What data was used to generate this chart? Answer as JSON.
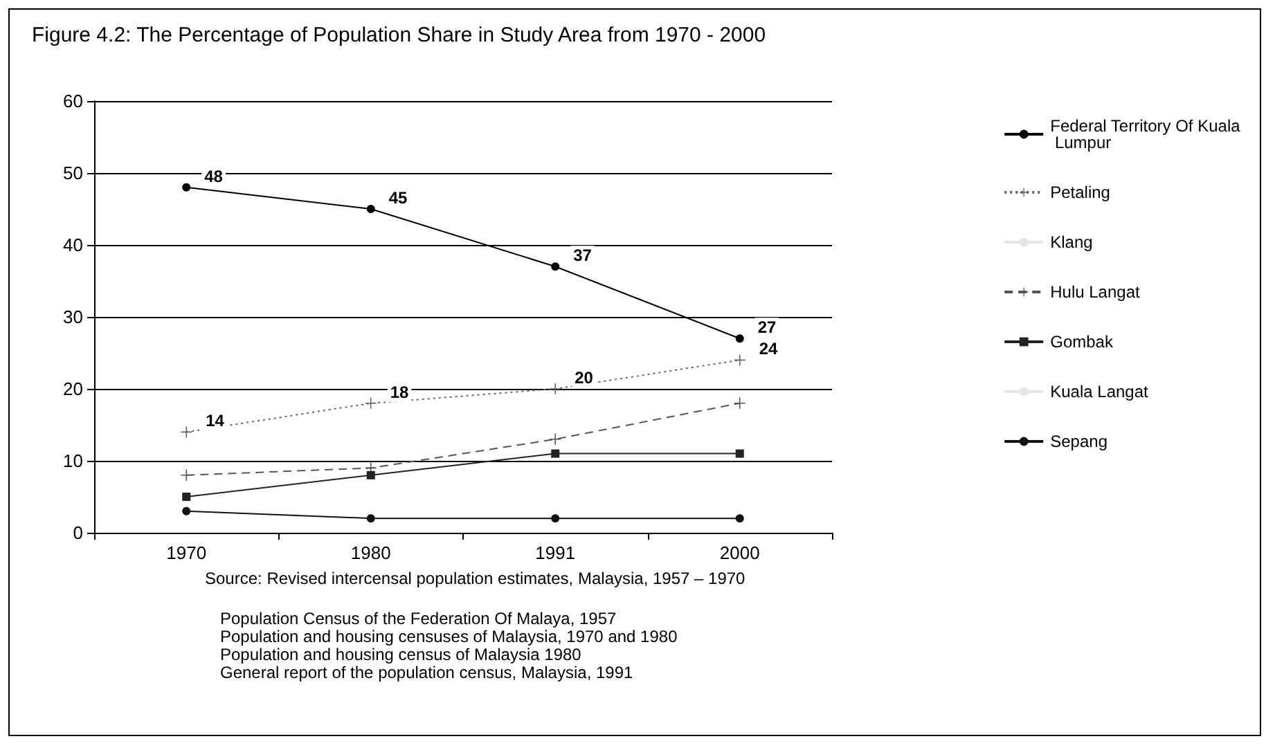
{
  "chart_data": {
    "type": "line",
    "title": "Figure 4.2: The Percentage of Population Share in Study Area from 1970 - 2000",
    "categories": [
      "1970",
      "1980",
      "1991",
      "2000"
    ],
    "series": [
      {
        "name": "Federal Territory Of Kuala Lumpur",
        "color": "#000000",
        "values": [
          48,
          45,
          37,
          27
        ],
        "value_labels": [
          "48",
          "45",
          "37",
          "27"
        ],
        "marker": "circle",
        "line_style": "solid"
      },
      {
        "name": "Petaling",
        "color": "#666666",
        "values": [
          14,
          18,
          20,
          24
        ],
        "value_labels": [
          "14",
          "18",
          "20",
          "24"
        ],
        "marker": "cross",
        "line_style": "dotted"
      },
      {
        "name": "Klang",
        "color": "#e6e6e6",
        "values": [
          null,
          null,
          null,
          null
        ],
        "marker": "none",
        "line_style": "solid"
      },
      {
        "name": "Hulu Langat",
        "color": "#555555",
        "values": [
          8,
          9,
          13,
          18
        ],
        "marker": "cross",
        "line_style": "dashed"
      },
      {
        "name": "Gombak",
        "color": "#222222",
        "values": [
          5,
          8,
          11,
          11
        ],
        "marker": "square",
        "line_style": "solid"
      },
      {
        "name": "Kuala Langat",
        "color": "#e6e6e6",
        "values": [
          null,
          null,
          null,
          null
        ],
        "marker": "none",
        "line_style": "solid"
      },
      {
        "name": "Sepang",
        "color": "#111111",
        "values": [
          3,
          2,
          2,
          2
        ],
        "marker": "circle",
        "line_style": "solid"
      }
    ],
    "ylim": [
      0,
      60
    ],
    "yticks": [
      0,
      10,
      20,
      30,
      40,
      50,
      60
    ],
    "grid": "y",
    "legend": "right",
    "annotations": [
      "Source: Revised intercensal population estimates, Malaysia, 1957 – 1970",
      "Population Census of the Federation Of Malaya, 1957",
      "Population and housing censuses of Malaysia, 1970 and 1980",
      "Population and housing census of Malaysia 1980",
      "General report of the population census, Malaysia, 1991"
    ]
  }
}
